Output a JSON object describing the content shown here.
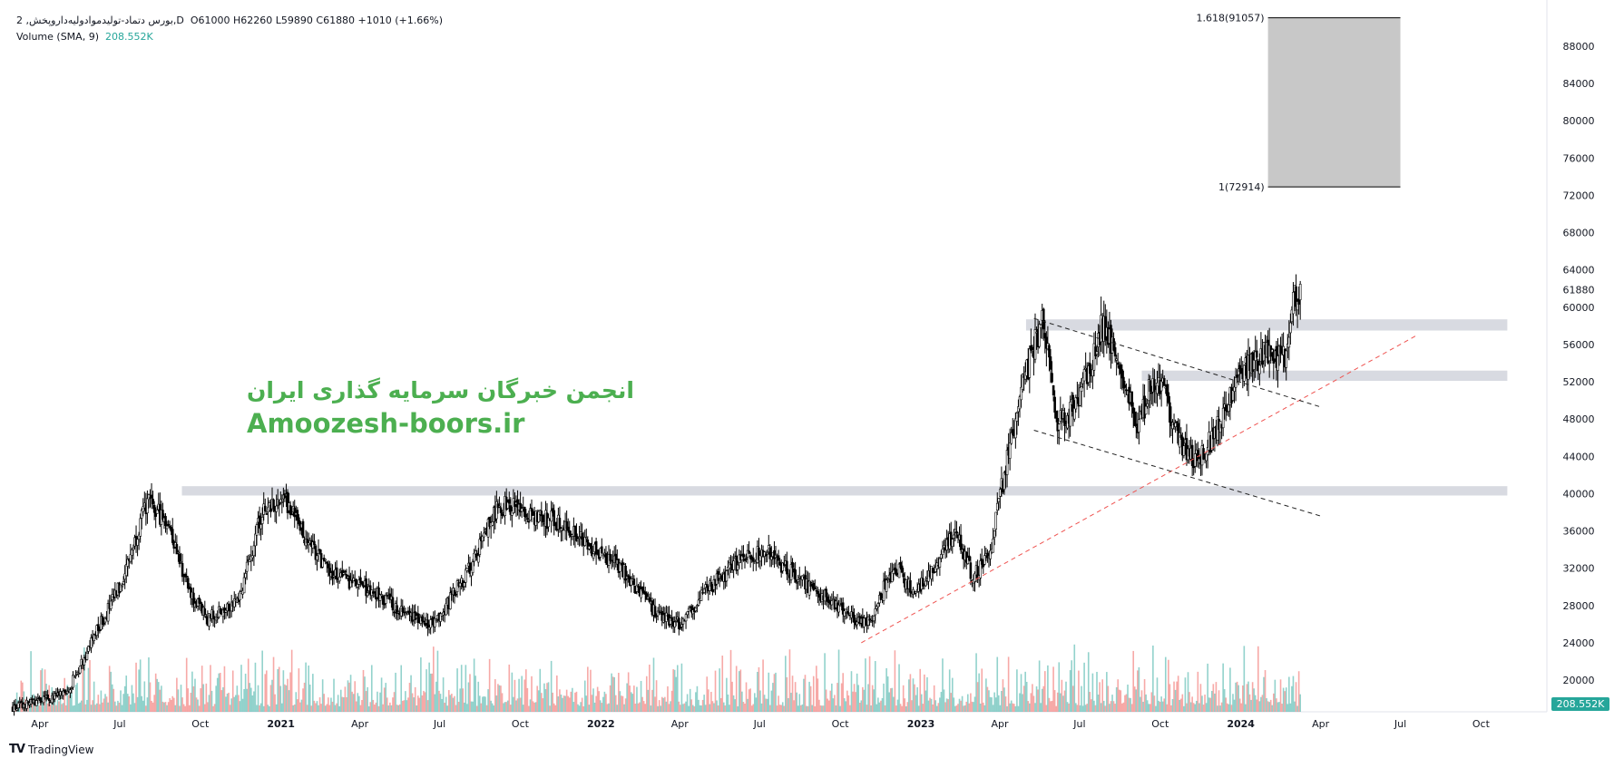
{
  "header": {
    "symbol_line": "2 ,بورس  دتماد-تولیدموادولیه‌داروپخش,D",
    "ohlc": "O61000  H62260  L59890  C61880  +1010 (+1.66%)",
    "volume_label": "Volume (SMA, 9)",
    "volume_value": "208.552K"
  },
  "watermark": {
    "line1": "انجمن خبرگان سرمایه گذاری ایران",
    "line2": "Amoozesh-boors.ir"
  },
  "brand": {
    "logo": "TV",
    "name": "TradingView"
  },
  "colors": {
    "up": "#26a69a",
    "down": "#ef5350",
    "candle": "#000000",
    "zone": "#d1d4dc",
    "trend_red": "#ef5350",
    "fib_box": "#c8c8c8",
    "watermark": "#4caf50"
  },
  "chart_data": {
    "type": "candlestick",
    "price_axis_ticks": [
      20000,
      24000,
      28000,
      32000,
      36000,
      40000,
      44000,
      48000,
      52000,
      56000,
      60000,
      64000,
      68000,
      72000,
      76000,
      80000,
      84000,
      88000
    ],
    "last_price_label": "61880",
    "ylim": [
      15500,
      92500
    ],
    "time_axis": [
      {
        "label": "Apr",
        "t": "2020-04"
      },
      {
        "label": "Jul",
        "t": "2020-07"
      },
      {
        "label": "Oct",
        "t": "2020-10"
      },
      {
        "label": "2021",
        "t": "2021-01",
        "bold": true
      },
      {
        "label": "Apr",
        "t": "2021-04"
      },
      {
        "label": "Jul",
        "t": "2021-07"
      },
      {
        "label": "Oct",
        "t": "2021-10"
      },
      {
        "label": "2022",
        "t": "2022-01",
        "bold": true
      },
      {
        "label": "Apr",
        "t": "2022-04"
      },
      {
        "label": "Jul",
        "t": "2022-07"
      },
      {
        "label": "Oct",
        "t": "2022-10"
      },
      {
        "label": "2023",
        "t": "2023-01",
        "bold": true
      },
      {
        "label": "Apr",
        "t": "2023-04"
      },
      {
        "label": "Jul",
        "t": "2023-07"
      },
      {
        "label": "Oct",
        "t": "2023-10"
      },
      {
        "label": "2024",
        "t": "2024-01",
        "bold": true
      },
      {
        "label": "Apr",
        "t": "2024-04"
      },
      {
        "label": "Jul",
        "t": "2024-07"
      },
      {
        "label": "Oct",
        "t": "2024-10"
      }
    ],
    "price_path": [
      [
        "2020-03-01",
        17000
      ],
      [
        "2020-05-01",
        18500
      ],
      [
        "2020-06-01",
        24500
      ],
      [
        "2020-07-01",
        30000
      ],
      [
        "2020-08-01",
        39000
      ],
      [
        "2020-08-25",
        37000
      ],
      [
        "2020-09-20",
        29000
      ],
      [
        "2020-10-10",
        26500
      ],
      [
        "2020-11-15",
        29000
      ],
      [
        "2020-12-10",
        38000
      ],
      [
        "2021-01-05",
        39500
      ],
      [
        "2021-01-25",
        36000
      ],
      [
        "2021-02-25",
        31500
      ],
      [
        "2021-04-05",
        30000
      ],
      [
        "2021-05-20",
        27500
      ],
      [
        "2021-06-25",
        26000
      ],
      [
        "2021-08-05",
        32000
      ],
      [
        "2021-09-01",
        38000
      ],
      [
        "2021-09-15",
        39000
      ],
      [
        "2021-10-10",
        37500
      ],
      [
        "2021-11-15",
        37000
      ],
      [
        "2021-12-20",
        34000
      ],
      [
        "2022-01-25",
        32000
      ],
      [
        "2022-03-01",
        27500
      ],
      [
        "2022-04-01",
        26000
      ],
      [
        "2022-05-01",
        29500
      ],
      [
        "2022-06-10",
        33000
      ],
      [
        "2022-07-05",
        34000
      ],
      [
        "2022-08-20",
        30500
      ],
      [
        "2022-09-20",
        28500
      ],
      [
        "2022-10-15",
        26500
      ],
      [
        "2022-11-05",
        26000
      ],
      [
        "2022-11-20",
        30000
      ],
      [
        "2022-12-05",
        32000
      ],
      [
        "2022-12-25",
        29000
      ],
      [
        "2023-01-25",
        33500
      ],
      [
        "2023-02-10",
        36000
      ],
      [
        "2023-03-01",
        31000
      ],
      [
        "2023-03-20",
        33500
      ],
      [
        "2023-04-10",
        44000
      ],
      [
        "2023-04-28",
        52000
      ],
      [
        "2023-05-20",
        59000
      ],
      [
        "2023-06-05",
        47500
      ],
      [
        "2023-06-25",
        49500
      ],
      [
        "2023-07-15",
        54000
      ],
      [
        "2023-07-28",
        58500
      ],
      [
        "2023-08-15",
        54000
      ],
      [
        "2023-09-05",
        47000
      ],
      [
        "2023-09-20",
        51500
      ],
      [
        "2023-10-05",
        51000
      ],
      [
        "2023-10-25",
        45000
      ],
      [
        "2023-11-15",
        43500
      ],
      [
        "2023-12-05",
        47000
      ],
      [
        "2023-12-25",
        51500
      ],
      [
        "2024-01-15",
        54500
      ],
      [
        "2024-02-01",
        55000
      ],
      [
        "2024-02-20",
        55000
      ],
      [
        "2024-03-01",
        60500
      ],
      [
        "2024-03-10",
        61880
      ]
    ],
    "annotations": {
      "zones": [
        {
          "t0": "2023-05-01",
          "t1": "2024-10-31",
          "p0": 57500,
          "p1": 58700
        },
        {
          "t0": "2023-09-10",
          "t1": "2024-10-31",
          "p0": 52100,
          "p1": 53200
        },
        {
          "t0": "2020-09-10",
          "t1": "2024-10-31",
          "p0": 39800,
          "p1": 40800
        }
      ],
      "fib_box": {
        "t0": "2024-02-01",
        "t1": "2024-07-01",
        "p0": 72914,
        "p1": 91057,
        "labels": [
          "1.618(91057)",
          "1(72914)"
        ]
      },
      "trend_lines": [
        {
          "t0": "2022-10-25",
          "p0": 24000,
          "t1": "2024-07-20",
          "p1": 57000,
          "style": "red-dashed"
        },
        {
          "t0": "2023-05-10",
          "p0": 58800,
          "t1": "2024-04-01",
          "p1": 49300,
          "style": "black-dashed"
        },
        {
          "t0": "2023-05-10",
          "p0": 46800,
          "t1": "2024-04-01",
          "p1": 37600,
          "style": "black-dashed"
        }
      ]
    }
  }
}
